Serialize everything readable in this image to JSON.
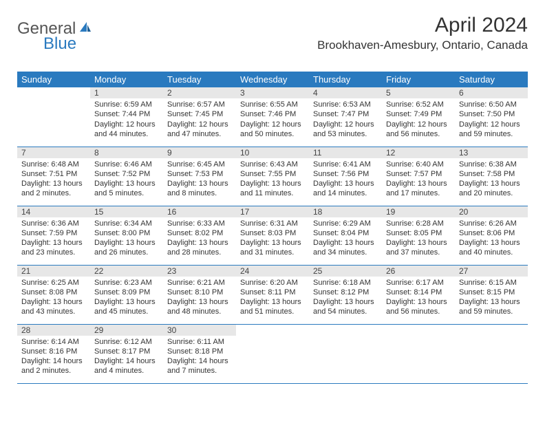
{
  "header": {
    "logo_general": "General",
    "logo_blue": "Blue",
    "month_title": "April 2024",
    "location": "Brookhaven-Amesbury, Ontario, Canada"
  },
  "days_of_week": [
    "Sunday",
    "Monday",
    "Tuesday",
    "Wednesday",
    "Thursday",
    "Friday",
    "Saturday"
  ],
  "colors": {
    "header_bg": "#2a7abf",
    "header_fg": "#ffffff",
    "daynum_bg": "#e7e7e7",
    "row_border": "#2a7abf"
  },
  "weeks": [
    [
      {
        "empty": true
      },
      {
        "n": "1",
        "sunrise": "Sunrise: 6:59 AM",
        "sunset": "Sunset: 7:44 PM",
        "daylight": "Daylight: 12 hours and 44 minutes."
      },
      {
        "n": "2",
        "sunrise": "Sunrise: 6:57 AM",
        "sunset": "Sunset: 7:45 PM",
        "daylight": "Daylight: 12 hours and 47 minutes."
      },
      {
        "n": "3",
        "sunrise": "Sunrise: 6:55 AM",
        "sunset": "Sunset: 7:46 PM",
        "daylight": "Daylight: 12 hours and 50 minutes."
      },
      {
        "n": "4",
        "sunrise": "Sunrise: 6:53 AM",
        "sunset": "Sunset: 7:47 PM",
        "daylight": "Daylight: 12 hours and 53 minutes."
      },
      {
        "n": "5",
        "sunrise": "Sunrise: 6:52 AM",
        "sunset": "Sunset: 7:49 PM",
        "daylight": "Daylight: 12 hours and 56 minutes."
      },
      {
        "n": "6",
        "sunrise": "Sunrise: 6:50 AM",
        "sunset": "Sunset: 7:50 PM",
        "daylight": "Daylight: 12 hours and 59 minutes."
      }
    ],
    [
      {
        "n": "7",
        "sunrise": "Sunrise: 6:48 AM",
        "sunset": "Sunset: 7:51 PM",
        "daylight": "Daylight: 13 hours and 2 minutes."
      },
      {
        "n": "8",
        "sunrise": "Sunrise: 6:46 AM",
        "sunset": "Sunset: 7:52 PM",
        "daylight": "Daylight: 13 hours and 5 minutes."
      },
      {
        "n": "9",
        "sunrise": "Sunrise: 6:45 AM",
        "sunset": "Sunset: 7:53 PM",
        "daylight": "Daylight: 13 hours and 8 minutes."
      },
      {
        "n": "10",
        "sunrise": "Sunrise: 6:43 AM",
        "sunset": "Sunset: 7:55 PM",
        "daylight": "Daylight: 13 hours and 11 minutes."
      },
      {
        "n": "11",
        "sunrise": "Sunrise: 6:41 AM",
        "sunset": "Sunset: 7:56 PM",
        "daylight": "Daylight: 13 hours and 14 minutes."
      },
      {
        "n": "12",
        "sunrise": "Sunrise: 6:40 AM",
        "sunset": "Sunset: 7:57 PM",
        "daylight": "Daylight: 13 hours and 17 minutes."
      },
      {
        "n": "13",
        "sunrise": "Sunrise: 6:38 AM",
        "sunset": "Sunset: 7:58 PM",
        "daylight": "Daylight: 13 hours and 20 minutes."
      }
    ],
    [
      {
        "n": "14",
        "sunrise": "Sunrise: 6:36 AM",
        "sunset": "Sunset: 7:59 PM",
        "daylight": "Daylight: 13 hours and 23 minutes."
      },
      {
        "n": "15",
        "sunrise": "Sunrise: 6:34 AM",
        "sunset": "Sunset: 8:00 PM",
        "daylight": "Daylight: 13 hours and 26 minutes."
      },
      {
        "n": "16",
        "sunrise": "Sunrise: 6:33 AM",
        "sunset": "Sunset: 8:02 PM",
        "daylight": "Daylight: 13 hours and 28 minutes."
      },
      {
        "n": "17",
        "sunrise": "Sunrise: 6:31 AM",
        "sunset": "Sunset: 8:03 PM",
        "daylight": "Daylight: 13 hours and 31 minutes."
      },
      {
        "n": "18",
        "sunrise": "Sunrise: 6:29 AM",
        "sunset": "Sunset: 8:04 PM",
        "daylight": "Daylight: 13 hours and 34 minutes."
      },
      {
        "n": "19",
        "sunrise": "Sunrise: 6:28 AM",
        "sunset": "Sunset: 8:05 PM",
        "daylight": "Daylight: 13 hours and 37 minutes."
      },
      {
        "n": "20",
        "sunrise": "Sunrise: 6:26 AM",
        "sunset": "Sunset: 8:06 PM",
        "daylight": "Daylight: 13 hours and 40 minutes."
      }
    ],
    [
      {
        "n": "21",
        "sunrise": "Sunrise: 6:25 AM",
        "sunset": "Sunset: 8:08 PM",
        "daylight": "Daylight: 13 hours and 43 minutes."
      },
      {
        "n": "22",
        "sunrise": "Sunrise: 6:23 AM",
        "sunset": "Sunset: 8:09 PM",
        "daylight": "Daylight: 13 hours and 45 minutes."
      },
      {
        "n": "23",
        "sunrise": "Sunrise: 6:21 AM",
        "sunset": "Sunset: 8:10 PM",
        "daylight": "Daylight: 13 hours and 48 minutes."
      },
      {
        "n": "24",
        "sunrise": "Sunrise: 6:20 AM",
        "sunset": "Sunset: 8:11 PM",
        "daylight": "Daylight: 13 hours and 51 minutes."
      },
      {
        "n": "25",
        "sunrise": "Sunrise: 6:18 AM",
        "sunset": "Sunset: 8:12 PM",
        "daylight": "Daylight: 13 hours and 54 minutes."
      },
      {
        "n": "26",
        "sunrise": "Sunrise: 6:17 AM",
        "sunset": "Sunset: 8:14 PM",
        "daylight": "Daylight: 13 hours and 56 minutes."
      },
      {
        "n": "27",
        "sunrise": "Sunrise: 6:15 AM",
        "sunset": "Sunset: 8:15 PM",
        "daylight": "Daylight: 13 hours and 59 minutes."
      }
    ],
    [
      {
        "n": "28",
        "sunrise": "Sunrise: 6:14 AM",
        "sunset": "Sunset: 8:16 PM",
        "daylight": "Daylight: 14 hours and 2 minutes."
      },
      {
        "n": "29",
        "sunrise": "Sunrise: 6:12 AM",
        "sunset": "Sunset: 8:17 PM",
        "daylight": "Daylight: 14 hours and 4 minutes."
      },
      {
        "n": "30",
        "sunrise": "Sunrise: 6:11 AM",
        "sunset": "Sunset: 8:18 PM",
        "daylight": "Daylight: 14 hours and 7 minutes."
      },
      {
        "empty": true
      },
      {
        "empty": true
      },
      {
        "empty": true
      },
      {
        "empty": true
      }
    ]
  ]
}
